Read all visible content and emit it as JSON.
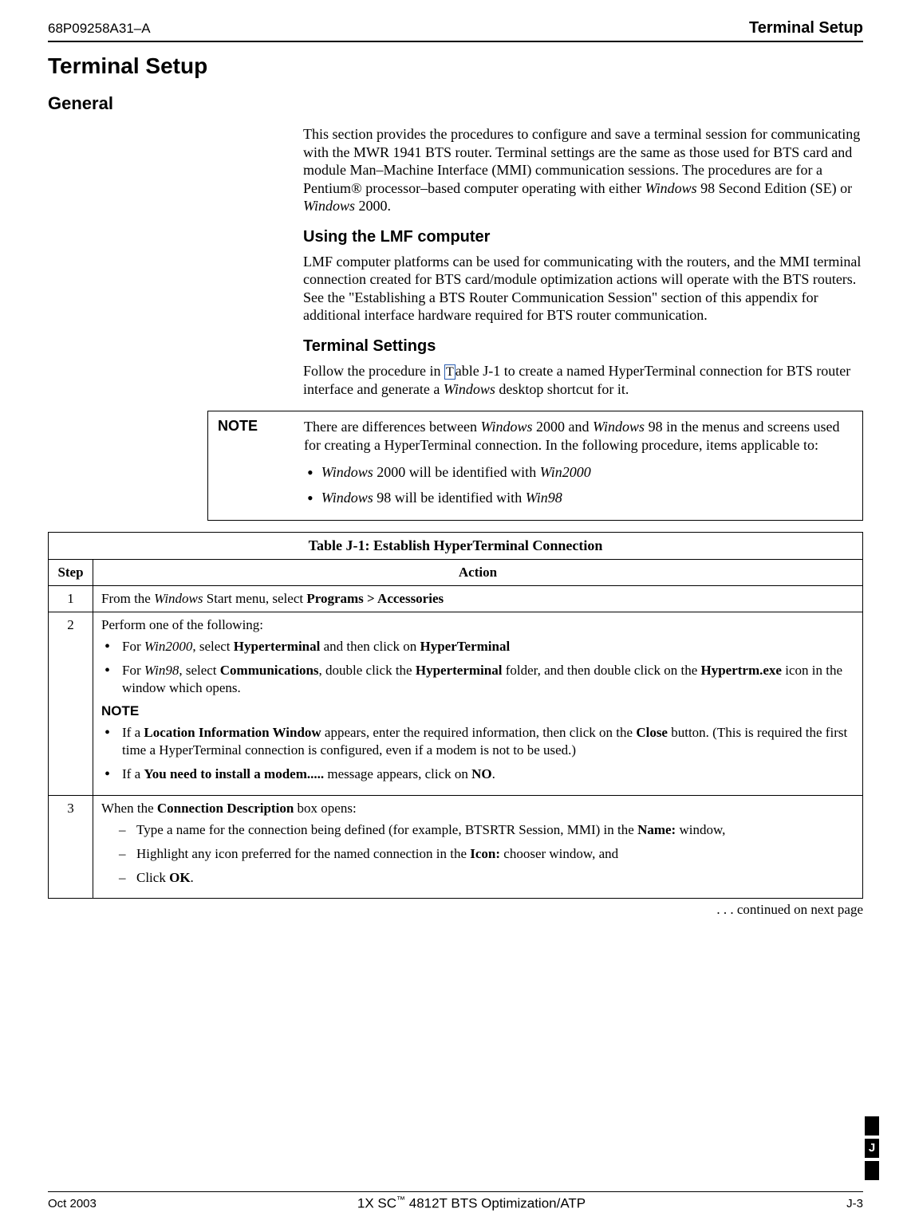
{
  "header": {
    "doc_number": "68P09258A31–A",
    "section": "Terminal Setup"
  },
  "title": "Terminal Setup",
  "general": {
    "heading": "General",
    "p1_a": "This section provides the procedures to configure and save a terminal session for communicating with the MWR 1941 BTS router. Terminal settings are the same as those used for BTS card and module Man–Machine Interface (MMI) communication sessions. The procedures are for a Pentium",
    "reg": "®",
    "p1_b": " processor–based computer operating with either ",
    "p1_c": " 98 Second Edition (SE) or ",
    "p1_d": " 2000.",
    "win": "Windows"
  },
  "lmf": {
    "heading": "Using the LMF computer",
    "p": "LMF computer platforms can be used for communicating with the routers, and the MMI terminal connection created for BTS card/module optimization actions will operate with the BTS routers. See the \"Establishing a BTS Router Communication Session\" section of this appendix for additional interface hardware required for BTS router communication."
  },
  "ts": {
    "heading": "Terminal Settings",
    "p_a": "Follow the procedure in ",
    "p_link": "T",
    "p_b": "able J-1 to create a named HyperTerminal connection for BTS router interface and generate a ",
    "win": "Windows",
    "p_c": " desktop shortcut for it."
  },
  "note": {
    "label": "NOTE",
    "line1_a": "There are differences between ",
    "line1_b": " 2000 and ",
    "line1_c": " 98 in the menus and screens used for creating a HyperTerminal connection. In the following procedure, items applicable to:",
    "b1_a": " 2000 will be identified with ",
    "b1_it": "Win2000",
    "b2_a": " 98 will be identified with ",
    "b2_it": "Win98"
  },
  "table": {
    "caption_bold": "Table J-1:",
    "caption_rest": " Establish HyperTerminal Connection",
    "h_step": "Step",
    "h_action": "Action",
    "r1": {
      "step": "1",
      "a": "From the ",
      "b": "Windows",
      "c": " Start menu, select ",
      "d": "Programs > Accessories"
    },
    "r2": {
      "step": "2",
      "lead": "Perform one of the following:",
      "li1_a": "For ",
      "li1_it": "Win2000",
      "li1_b": ", select ",
      "li1_bd1": "Hyperterminal",
      "li1_c": " and then click on ",
      "li1_bd2": "HyperTerminal",
      "li2_a": "For ",
      "li2_it": "Win98",
      "li2_b": ", select ",
      "li2_bd1": "Communications",
      "li2_c": ", double click the ",
      "li2_bd2": "Hyperterminal",
      "li2_d": " folder, and then double click on the ",
      "li2_bd3": "Hypertrm.exe",
      "li2_e": " icon in the window which opens.",
      "note": "NOTE",
      "n1_a": "If a ",
      "n1_bd1": "Location Information Window",
      "n1_b": " appears, enter the required information, then click on the ",
      "n1_bd2": "Close",
      "n1_c": " button. (This is required the first time a HyperTerminal connection is configured, even if a modem is not to be used.)",
      "n2_a": "If a ",
      "n2_bd": "You need to install a modem.....",
      "n2_b": " message appears, click on ",
      "n2_bd2": "NO",
      "n2_c": "."
    },
    "r3": {
      "step": "3",
      "lead_a": "When the ",
      "lead_bd": "Connection Description",
      "lead_b": " box opens:",
      "d1_a": "Type a name for the connection being defined (for example, BTSRTR Session, MMI) in the ",
      "d1_bd": "Name:",
      "d1_b": " window,",
      "d2_a": "Highlight any icon preferred for the named connection in the ",
      "d2_bd": "Icon:",
      "d2_b": " chooser window, and",
      "d3_a": "Click  ",
      "d3_bd": "OK",
      "d3_b": "."
    }
  },
  "continued": ". . . continued on next page",
  "footer": {
    "left": "Oct 2003",
    "center_a": "1X SC",
    "tm": "™",
    "center_b": " 4812T BTS Optimization/ATP",
    "right": "J-3"
  },
  "tab": "J"
}
